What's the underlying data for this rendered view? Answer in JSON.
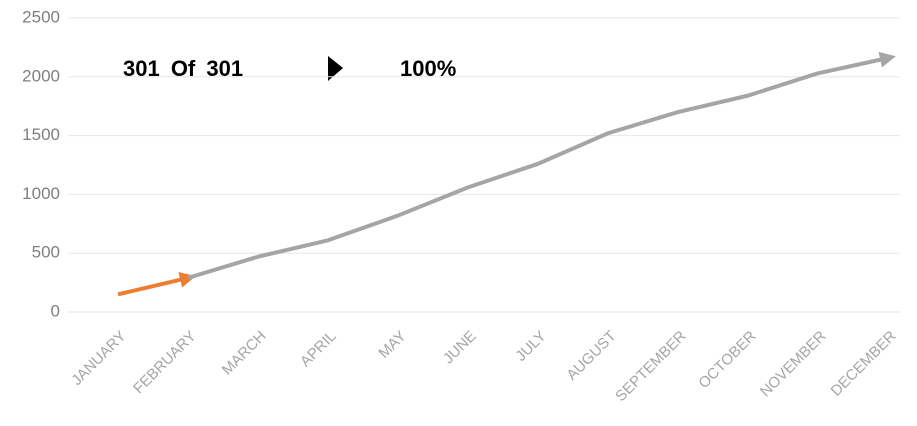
{
  "chart_data": {
    "type": "line",
    "annotations": [
      "301 Of 301",
      "100%"
    ],
    "categories": [
      "JANUARY",
      "FEBRUARY",
      "MARCH",
      "APRIL",
      "MAY",
      "JUNE",
      "JULY",
      "AUGUST",
      "SEPTEMBER",
      "OCTOBER",
      "NOVEMBER",
      "DECEMBER"
    ],
    "series": [
      {
        "color": "#ed7d31",
        "values": [
          150,
          290,
          null,
          null,
          null,
          null,
          null,
          null,
          null,
          null,
          null,
          null
        ]
      },
      {
        "color": "#a5a5a5",
        "values": [
          null,
          290,
          470,
          610,
          820,
          1060,
          1260,
          1520,
          1700,
          1840,
          2030,
          2160
        ]
      }
    ],
    "ylim": [
      0,
      2500
    ],
    "yticks": [
      0,
      500,
      1000,
      1500,
      2000,
      2500
    ],
    "grid": true
  }
}
